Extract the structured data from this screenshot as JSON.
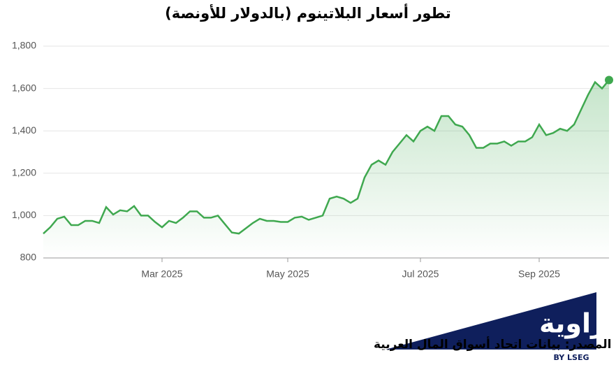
{
  "chart_data": {
    "type": "line",
    "title": "تطور أسعار البلاتينوم (بالدولار للأونصة)",
    "source": "المصدر: بيانات اتحاد أسواق المال العربية",
    "logo_text": "زاوية",
    "logo_sub": "BY LSEG",
    "categories": [
      null,
      null,
      null,
      null,
      null,
      null,
      null,
      null,
      null,
      null,
      null,
      null,
      null,
      null,
      null,
      null,
      null,
      "Mar 2025",
      null,
      null,
      null,
      null,
      null,
      null,
      null,
      null,
      null,
      null,
      null,
      null,
      null,
      null,
      null,
      null,
      null,
      "May 2025",
      null,
      null,
      null,
      null,
      null,
      null,
      null,
      null,
      null,
      null,
      null,
      null,
      null,
      null,
      null,
      null,
      null,
      null,
      "Jul 2025",
      null,
      null,
      null,
      null,
      null,
      null,
      null,
      null,
      null,
      null,
      null,
      null,
      null,
      null,
      null,
      null,
      "Sep 2025",
      null,
      null,
      null,
      null,
      null,
      null,
      null,
      null,
      null,
      null
    ],
    "series": [
      {
        "color": "#3fa84f",
        "values": [
          915,
          945,
          985,
          995,
          955,
          955,
          975,
          975,
          965,
          1040,
          1005,
          1025,
          1020,
          1045,
          1000,
          1000,
          970,
          945,
          975,
          965,
          990,
          1020,
          1020,
          990,
          990,
          1000,
          960,
          920,
          915,
          940,
          965,
          985,
          975,
          975,
          970,
          970,
          990,
          995,
          980,
          990,
          1000,
          1080,
          1090,
          1080,
          1060,
          1080,
          1180,
          1240,
          1260,
          1240,
          1300,
          1340,
          1380,
          1350,
          1400,
          1420,
          1400,
          1470,
          1470,
          1430,
          1420,
          1380,
          1320,
          1320,
          1340,
          1340,
          1350,
          1330,
          1350,
          1350,
          1370,
          1430,
          1380,
          1390,
          1410,
          1400,
          1430,
          1500,
          1570,
          1630,
          1600,
          1640
        ]
      }
    ],
    "ylim": [
      800,
      1800
    ],
    "yticks": [
      800,
      {
        "value": 1000,
        "label": "1,000"
      },
      {
        "value": 1200,
        "label": "1,200"
      },
      {
        "value": 1400,
        "label": "1,400"
      },
      {
        "value": 1600,
        "label": "1,600"
      },
      {
        "value": 1800,
        "label": "1,800"
      }
    ],
    "grid": true
  }
}
